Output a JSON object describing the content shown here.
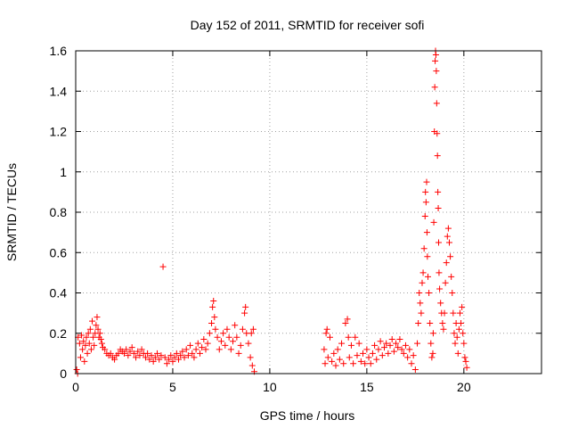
{
  "chart_data": {
    "type": "scatter",
    "title": "Day 152 of 2011, SRMTID for receiver sofi",
    "xlabel": "GPS time / hours",
    "ylabel": "SRMTID / TECUs",
    "xlim": [
      0,
      24
    ],
    "ylim": [
      0,
      1.6
    ],
    "x_ticks": [
      {
        "value": 0,
        "label": "0"
      },
      {
        "value": 5,
        "label": "5"
      },
      {
        "value": 10,
        "label": "10"
      },
      {
        "value": 15,
        "label": "15"
      },
      {
        "value": 20,
        "label": "20"
      }
    ],
    "y_ticks": [
      {
        "value": 0,
        "label": "0"
      },
      {
        "value": 0.2,
        "label": "0.2"
      },
      {
        "value": 0.4,
        "label": "0.4"
      },
      {
        "value": 0.6,
        "label": "0.6"
      },
      {
        "value": 0.8,
        "label": "0.8"
      },
      {
        "value": 1,
        "label": "1"
      },
      {
        "value": 1.2,
        "label": "1.2"
      },
      {
        "value": 1.4,
        "label": "1.4"
      },
      {
        "value": 1.6,
        "label": "1.6"
      }
    ],
    "grid": true,
    "marker": "+",
    "color": "#ff0000",
    "series": [
      {
        "name": "SRMTID",
        "points": [
          [
            0.05,
            0.02
          ],
          [
            0.1,
            0.0
          ],
          [
            0.12,
            0.18
          ],
          [
            0.2,
            0.15
          ],
          [
            0.25,
            0.08
          ],
          [
            0.3,
            0.19
          ],
          [
            0.35,
            0.12
          ],
          [
            0.4,
            0.16
          ],
          [
            0.45,
            0.06
          ],
          [
            0.5,
            0.14
          ],
          [
            0.55,
            0.18
          ],
          [
            0.6,
            0.1
          ],
          [
            0.65,
            0.2
          ],
          [
            0.7,
            0.15
          ],
          [
            0.75,
            0.22
          ],
          [
            0.8,
            0.12
          ],
          [
            0.85,
            0.26
          ],
          [
            0.9,
            0.18
          ],
          [
            0.95,
            0.14
          ],
          [
            1.0,
            0.2
          ],
          [
            1.05,
            0.24
          ],
          [
            1.1,
            0.28
          ],
          [
            1.15,
            0.22
          ],
          [
            1.2,
            0.18
          ],
          [
            1.25,
            0.2
          ],
          [
            1.3,
            0.17
          ],
          [
            1.35,
            0.15
          ],
          [
            1.4,
            0.13
          ],
          [
            1.5,
            0.12
          ],
          [
            1.6,
            0.1
          ],
          [
            1.7,
            0.09
          ],
          [
            1.8,
            0.1
          ],
          [
            1.9,
            0.08
          ],
          [
            2.0,
            0.07
          ],
          [
            2.1,
            0.09
          ],
          [
            2.2,
            0.1
          ],
          [
            2.3,
            0.12
          ],
          [
            2.4,
            0.11
          ],
          [
            2.5,
            0.1
          ],
          [
            2.6,
            0.12
          ],
          [
            2.7,
            0.09
          ],
          [
            2.8,
            0.11
          ],
          [
            2.9,
            0.13
          ],
          [
            3.0,
            0.1
          ],
          [
            3.1,
            0.08
          ],
          [
            3.2,
            0.11
          ],
          [
            3.3,
            0.09
          ],
          [
            3.4,
            0.12
          ],
          [
            3.5,
            0.1
          ],
          [
            3.6,
            0.08
          ],
          [
            3.7,
            0.1
          ],
          [
            3.8,
            0.07
          ],
          [
            3.9,
            0.09
          ],
          [
            4.0,
            0.06
          ],
          [
            4.1,
            0.08
          ],
          [
            4.2,
            0.1
          ],
          [
            4.3,
            0.07
          ],
          [
            4.4,
            0.09
          ],
          [
            4.5,
            0.53
          ],
          [
            4.6,
            0.08
          ],
          [
            4.7,
            0.05
          ],
          [
            4.8,
            0.07
          ],
          [
            4.9,
            0.09
          ],
          [
            5.0,
            0.06
          ],
          [
            5.1,
            0.08
          ],
          [
            5.2,
            0.1
          ],
          [
            5.3,
            0.07
          ],
          [
            5.4,
            0.09
          ],
          [
            5.5,
            0.11
          ],
          [
            5.6,
            0.08
          ],
          [
            5.7,
            0.12
          ],
          [
            5.8,
            0.09
          ],
          [
            5.9,
            0.14
          ],
          [
            6.0,
            0.1
          ],
          [
            6.1,
            0.08
          ],
          [
            6.2,
            0.12
          ],
          [
            6.3,
            0.15
          ],
          [
            6.4,
            0.1
          ],
          [
            6.5,
            0.13
          ],
          [
            6.6,
            0.17
          ],
          [
            6.7,
            0.12
          ],
          [
            6.8,
            0.15
          ],
          [
            6.9,
            0.2
          ],
          [
            7.0,
            0.25
          ],
          [
            7.05,
            0.33
          ],
          [
            7.1,
            0.36
          ],
          [
            7.15,
            0.28
          ],
          [
            7.2,
            0.22
          ],
          [
            7.3,
            0.18
          ],
          [
            7.4,
            0.12
          ],
          [
            7.5,
            0.16
          ],
          [
            7.6,
            0.2
          ],
          [
            7.7,
            0.14
          ],
          [
            7.8,
            0.22
          ],
          [
            7.9,
            0.18
          ],
          [
            8.0,
            0.12
          ],
          [
            8.1,
            0.16
          ],
          [
            8.2,
            0.24
          ],
          [
            8.3,
            0.18
          ],
          [
            8.4,
            0.1
          ],
          [
            8.5,
            0.14
          ],
          [
            8.6,
            0.22
          ],
          [
            8.7,
            0.3
          ],
          [
            8.75,
            0.33
          ],
          [
            8.8,
            0.2
          ],
          [
            8.9,
            0.15
          ],
          [
            9.0,
            0.08
          ],
          [
            9.05,
            0.2
          ],
          [
            9.1,
            0.04
          ],
          [
            9.15,
            0.22
          ],
          [
            9.2,
            0.01
          ],
          [
            12.8,
            0.12
          ],
          [
            12.85,
            0.05
          ],
          [
            12.9,
            0.2
          ],
          [
            12.95,
            0.22
          ],
          [
            13.0,
            0.08
          ],
          [
            13.1,
            0.18
          ],
          [
            13.2,
            0.06
          ],
          [
            13.3,
            0.1
          ],
          [
            13.4,
            0.04
          ],
          [
            13.5,
            0.12
          ],
          [
            13.6,
            0.07
          ],
          [
            13.7,
            0.15
          ],
          [
            13.8,
            0.05
          ],
          [
            13.9,
            0.25
          ],
          [
            14.0,
            0.27
          ],
          [
            14.05,
            0.18
          ],
          [
            14.1,
            0.08
          ],
          [
            14.2,
            0.14
          ],
          [
            14.3,
            0.05
          ],
          [
            14.4,
            0.18
          ],
          [
            14.5,
            0.09
          ],
          [
            14.6,
            0.15
          ],
          [
            14.7,
            0.06
          ],
          [
            14.8,
            0.1
          ],
          [
            14.9,
            0.05
          ],
          [
            15.0,
            0.12
          ],
          [
            15.1,
            0.08
          ],
          [
            15.2,
            0.05
          ],
          [
            15.3,
            0.1
          ],
          [
            15.4,
            0.14
          ],
          [
            15.5,
            0.07
          ],
          [
            15.6,
            0.12
          ],
          [
            15.7,
            0.16
          ],
          [
            15.8,
            0.09
          ],
          [
            15.9,
            0.13
          ],
          [
            16.0,
            0.15
          ],
          [
            16.1,
            0.1
          ],
          [
            16.2,
            0.14
          ],
          [
            16.3,
            0.17
          ],
          [
            16.4,
            0.11
          ],
          [
            16.5,
            0.15
          ],
          [
            16.6,
            0.13
          ],
          [
            16.7,
            0.17
          ],
          [
            16.8,
            0.12
          ],
          [
            16.9,
            0.1
          ],
          [
            17.0,
            0.14
          ],
          [
            17.1,
            0.08
          ],
          [
            17.2,
            0.12
          ],
          [
            17.3,
            0.05
          ],
          [
            17.4,
            0.09
          ],
          [
            17.5,
            0.02
          ],
          [
            17.6,
            0.15
          ],
          [
            17.65,
            0.25
          ],
          [
            17.7,
            0.4
          ],
          [
            17.75,
            0.35
          ],
          [
            17.8,
            0.3
          ],
          [
            17.85,
            0.45
          ],
          [
            17.9,
            0.5
          ],
          [
            17.95,
            0.62
          ],
          [
            18.0,
            0.78
          ],
          [
            18.02,
            0.9
          ],
          [
            18.05,
            0.85
          ],
          [
            18.08,
            0.95
          ],
          [
            18.1,
            0.7
          ],
          [
            18.12,
            0.58
          ],
          [
            18.15,
            0.48
          ],
          [
            18.2,
            0.4
          ],
          [
            18.25,
            0.25
          ],
          [
            18.3,
            0.15
          ],
          [
            18.35,
            0.08
          ],
          [
            18.4,
            0.1
          ],
          [
            18.42,
            0.2
          ],
          [
            18.45,
            0.75
          ],
          [
            18.48,
            1.2
          ],
          [
            18.5,
            1.42
          ],
          [
            18.52,
            1.55
          ],
          [
            18.54,
            1.6
          ],
          [
            18.56,
            1.58
          ],
          [
            18.58,
            1.5
          ],
          [
            18.6,
            1.34
          ],
          [
            18.62,
            1.19
          ],
          [
            18.64,
            1.08
          ],
          [
            18.66,
            0.9
          ],
          [
            18.68,
            0.82
          ],
          [
            18.7,
            0.65
          ],
          [
            18.72,
            0.5
          ],
          [
            18.75,
            0.42
          ],
          [
            18.8,
            0.35
          ],
          [
            18.85,
            0.3
          ],
          [
            18.9,
            0.25
          ],
          [
            18.95,
            0.22
          ],
          [
            19.0,
            0.3
          ],
          [
            19.05,
            0.45
          ],
          [
            19.1,
            0.55
          ],
          [
            19.15,
            0.68
          ],
          [
            19.2,
            0.72
          ],
          [
            19.25,
            0.65
          ],
          [
            19.3,
            0.58
          ],
          [
            19.35,
            0.48
          ],
          [
            19.4,
            0.4
          ],
          [
            19.45,
            0.3
          ],
          [
            19.5,
            0.2
          ],
          [
            19.55,
            0.15
          ],
          [
            19.6,
            0.25
          ],
          [
            19.65,
            0.18
          ],
          [
            19.7,
            0.1
          ],
          [
            19.75,
            0.22
          ],
          [
            19.8,
            0.3
          ],
          [
            19.85,
            0.25
          ],
          [
            19.9,
            0.33
          ],
          [
            19.95,
            0.2
          ],
          [
            20.0,
            0.15
          ],
          [
            20.05,
            0.08
          ],
          [
            20.1,
            0.06
          ],
          [
            20.15,
            0.03
          ]
        ]
      }
    ]
  }
}
